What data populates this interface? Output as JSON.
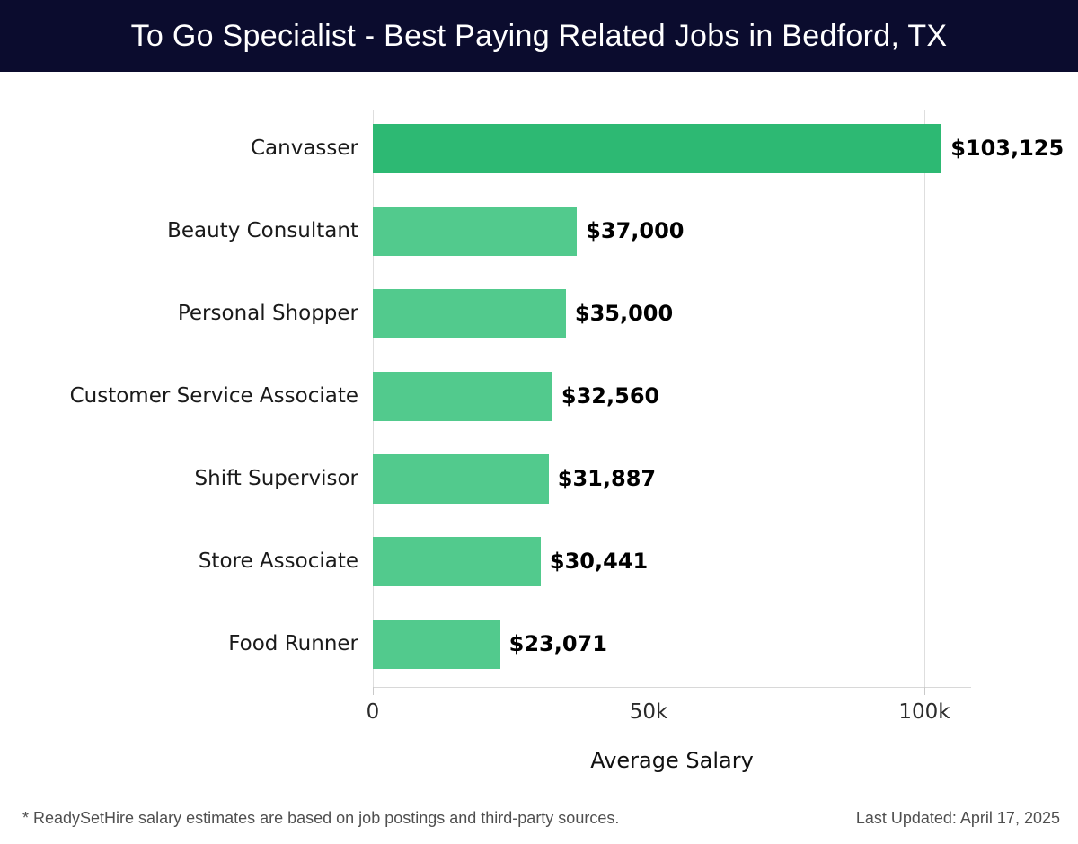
{
  "header": {
    "title": "To Go Specialist - Best Paying Related Jobs in Bedford, TX",
    "bg_color": "#0b0c2e",
    "text_color": "#ffffff"
  },
  "chart_data": {
    "type": "bar",
    "orientation": "horizontal",
    "title": "To Go Specialist - Best Paying Related Jobs in Bedford, TX",
    "categories": [
      "Canvasser",
      "Beauty Consultant",
      "Personal Shopper",
      "Customer Service Associate",
      "Shift Supervisor",
      "Store Associate",
      "Food Runner"
    ],
    "values": [
      103125,
      37000,
      35000,
      32560,
      31887,
      30441,
      23071
    ],
    "value_labels": [
      "$103,125",
      "$37,000",
      "$35,000",
      "$32,560",
      "$31,887",
      "$30,441",
      "$23,071"
    ],
    "xlabel": "Average Salary",
    "ylabel": "",
    "xlim": [
      0,
      108000
    ],
    "x_ticks": [
      {
        "value": 0,
        "label": "0"
      },
      {
        "value": 50000,
        "label": "50k"
      },
      {
        "value": 100000,
        "label": "100k"
      }
    ],
    "grid": true,
    "legend": "none",
    "highlight_index": 0,
    "highlight_color": "#2db973",
    "bar_color": "#52ca8d"
  },
  "footer": {
    "note": "* ReadySetHire salary estimates are based on job postings and third-party sources.",
    "last_updated": "Last Updated: April 17, 2025"
  }
}
